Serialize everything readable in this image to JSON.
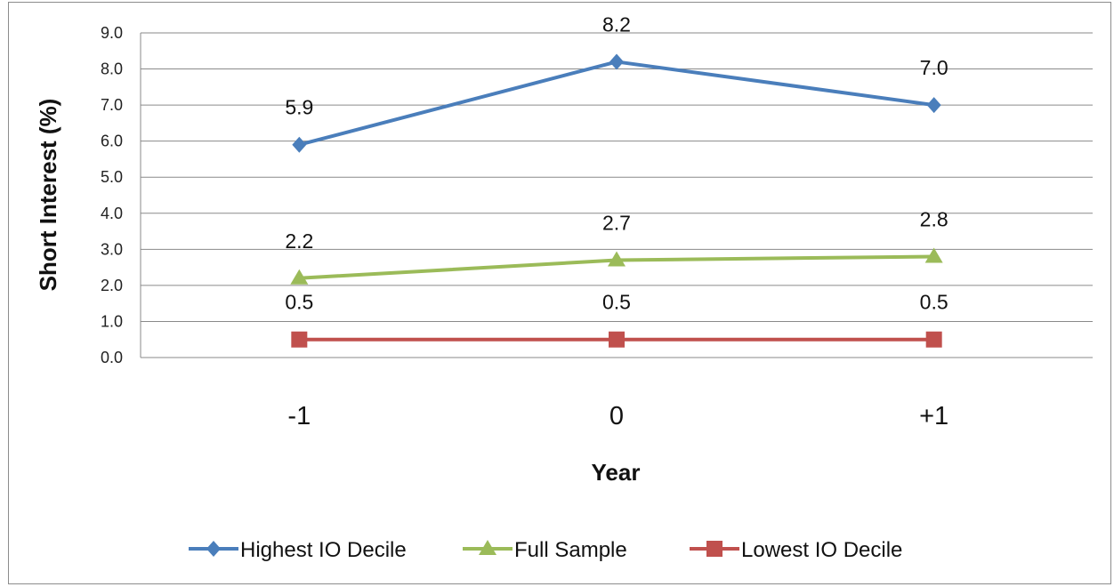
{
  "chart_data": {
    "type": "line",
    "categories": [
      "-1",
      "0",
      "+1"
    ],
    "ylabel": "Short Interest (%)",
    "xlabel": "Year",
    "ylim": [
      0,
      9
    ],
    "yticks": [
      "0.0",
      "1.0",
      "2.0",
      "3.0",
      "4.0",
      "5.0",
      "6.0",
      "7.0",
      "8.0",
      "9.0"
    ],
    "grid": true,
    "legend_position": "bottom",
    "series": [
      {
        "name": "Highest IO Decile",
        "values": [
          5.9,
          8.2,
          7.0
        ],
        "labels": [
          "5.9",
          "8.2",
          "7.0"
        ],
        "color": "#4a7ebb",
        "marker": "diamond"
      },
      {
        "name": "Full Sample",
        "values": [
          2.2,
          2.7,
          2.8
        ],
        "labels": [
          "2.2",
          "2.7",
          "2.8"
        ],
        "color": "#9bbb59",
        "marker": "triangle"
      },
      {
        "name": "Lowest IO Decile",
        "values": [
          0.5,
          0.5,
          0.5
        ],
        "labels": [
          "0.5",
          "0.5",
          "0.5"
        ],
        "color": "#c0504d",
        "marker": "square"
      }
    ]
  }
}
